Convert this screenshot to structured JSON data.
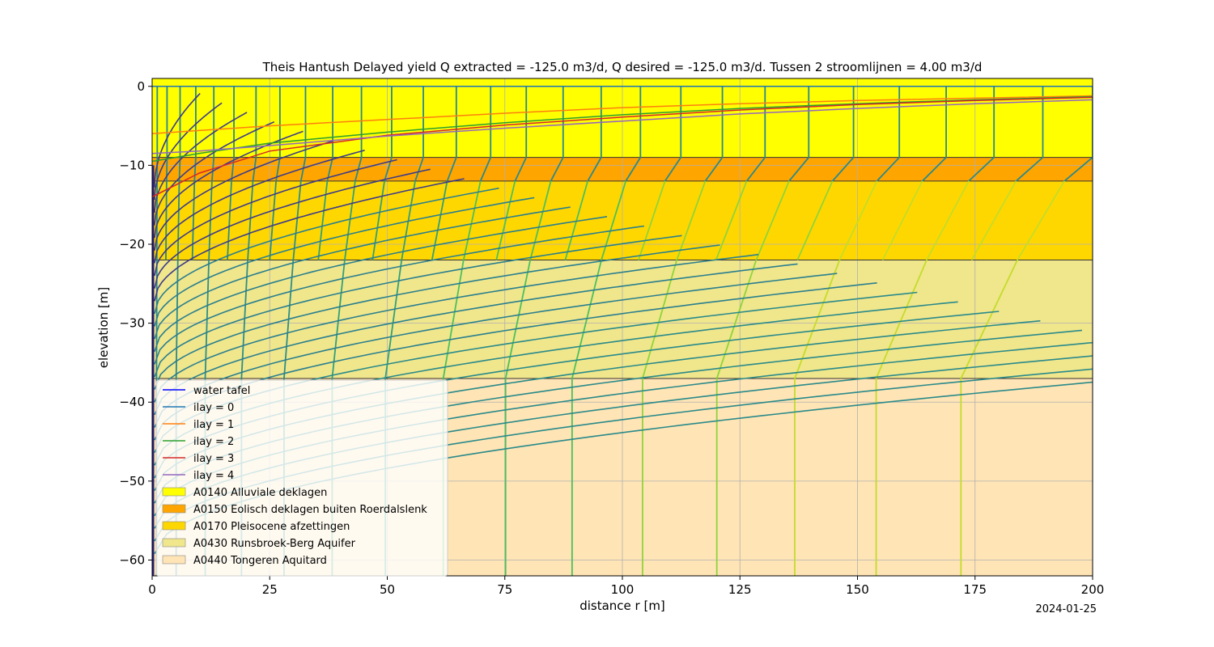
{
  "chart_data": {
    "type": "line",
    "title": "Theis Hantush Delayed yield Q extracted = -125.0 m3/d, Q desired = -125.0 m3/d. Tussen 2 stroomlijnen = 4.00 m3/d",
    "xlabel": "distance r [m]",
    "ylabel": "elevation [m]",
    "xlim": [
      0,
      200
    ],
    "ylim": [
      -62,
      1
    ],
    "xticks": [
      0,
      25,
      50,
      75,
      100,
      125,
      150,
      175,
      200
    ],
    "yticks": [
      0,
      -10,
      -20,
      -30,
      -40,
      -50,
      -60
    ],
    "grid": true,
    "legend_position": "lower-left",
    "date_label": "2024-01-25",
    "layers": [
      {
        "name": "A0140 Alluviale deklagen",
        "top": 1,
        "bottom": -9,
        "color": "#ffff00"
      },
      {
        "name": "A0150 Eolisch deklagen buiten Roerdalslenk",
        "top": -9,
        "bottom": -12,
        "color": "#ffa500"
      },
      {
        "name": "A0170 Pleisocene afzettingen",
        "top": -12,
        "bottom": -22,
        "color": "#ffd700"
      },
      {
        "name": "A0430 Runsbroek-Berg Aquifer",
        "top": -22,
        "bottom": -37,
        "color": "#f0e68c"
      },
      {
        "name": "A0440 Tongeren Aquitard",
        "top": -37,
        "bottom": -62,
        "color": "#ffe4b5"
      }
    ],
    "series": [
      {
        "name": "water tafel",
        "color": "#0000ff",
        "x": [
          0,
          200
        ],
        "y": [
          0,
          0
        ]
      },
      {
        "name": "ilay = 0",
        "color": "#1f77b4",
        "x": [
          0,
          200
        ],
        "y": [
          0,
          0
        ]
      },
      {
        "name": "ilay = 1",
        "color": "#ff7f0e",
        "x": [
          0,
          10,
          25,
          50,
          75,
          100,
          125,
          150,
          175,
          200
        ],
        "y": [
          -6.0,
          -5.6,
          -5.0,
          -4.2,
          -3.4,
          -2.7,
          -2.2,
          -1.8,
          -1.5,
          -1.2
        ]
      },
      {
        "name": "ilay = 2",
        "color": "#2ca02c",
        "x": [
          0,
          10,
          25,
          50,
          75,
          100,
          125,
          150,
          175,
          200
        ],
        "y": [
          -9.5,
          -8.5,
          -7.2,
          -5.8,
          -4.6,
          -3.6,
          -2.8,
          -2.2,
          -1.7,
          -1.3
        ]
      },
      {
        "name": "ilay = 3",
        "color": "#d62728",
        "x": [
          0,
          10,
          25,
          50,
          75,
          100,
          125,
          150,
          175,
          200
        ],
        "y": [
          -14.0,
          -11.0,
          -8.2,
          -6.2,
          -4.9,
          -3.9,
          -3.0,
          -2.3,
          -1.8,
          -1.4
        ]
      },
      {
        "name": "ilay = 4",
        "color": "#9467bd",
        "x": [
          0,
          10,
          25,
          50,
          75,
          100,
          125,
          150,
          175,
          200
        ],
        "y": [
          -8.5,
          -8.2,
          -7.5,
          -6.3,
          -5.3,
          -4.4,
          -3.5,
          -2.8,
          -2.2,
          -1.7
        ]
      }
    ],
    "well_screen": {
      "r": 0,
      "top": -10,
      "bottom": -62
    }
  }
}
